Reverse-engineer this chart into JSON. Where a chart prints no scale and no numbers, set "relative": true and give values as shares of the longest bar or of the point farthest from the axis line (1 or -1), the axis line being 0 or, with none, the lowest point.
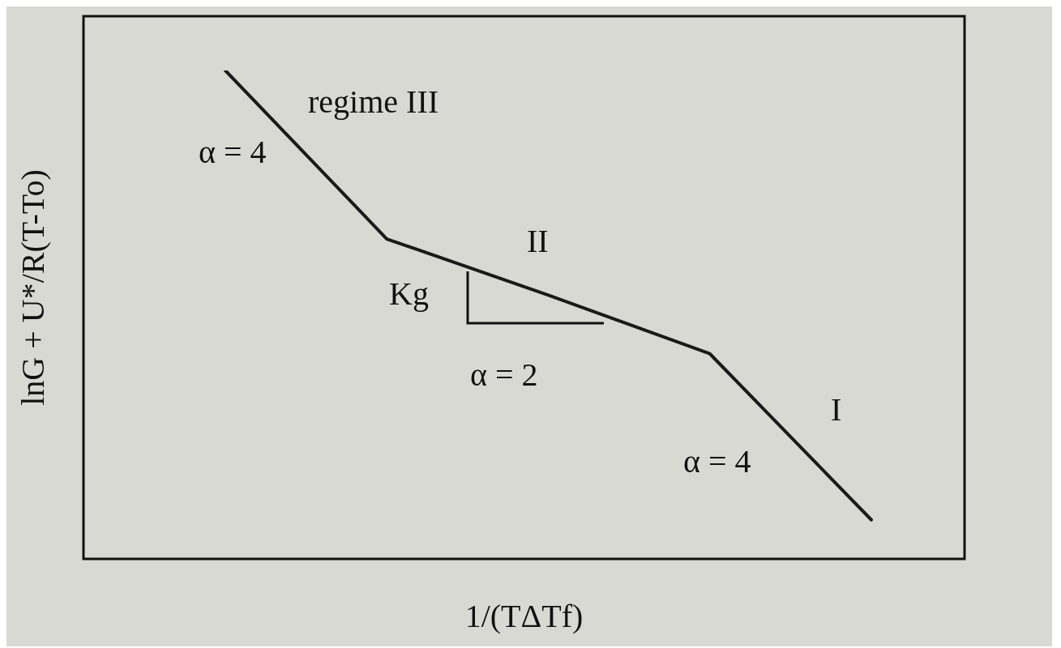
{
  "chart_data": {
    "type": "line",
    "relative": true,
    "tick_labels": false,
    "grid": false,
    "legend": false,
    "marker": "none",
    "line_style": "solid",
    "xlabel": "1/(TΔTf)",
    "ylabel": "lnG + U*/R(T-To)",
    "categories": [
      null,
      null,
      null,
      null,
      null
    ],
    "series": [
      {
        "color": "#1a1a1a",
        "values": [
          1,
          0.655,
          0.54,
          0.42,
          0.08
        ]
      }
    ],
    "annotations": [
      "regime III",
      "α = 4",
      "II",
      "Kg",
      "α = 2",
      "I",
      "α = 4"
    ]
  }
}
